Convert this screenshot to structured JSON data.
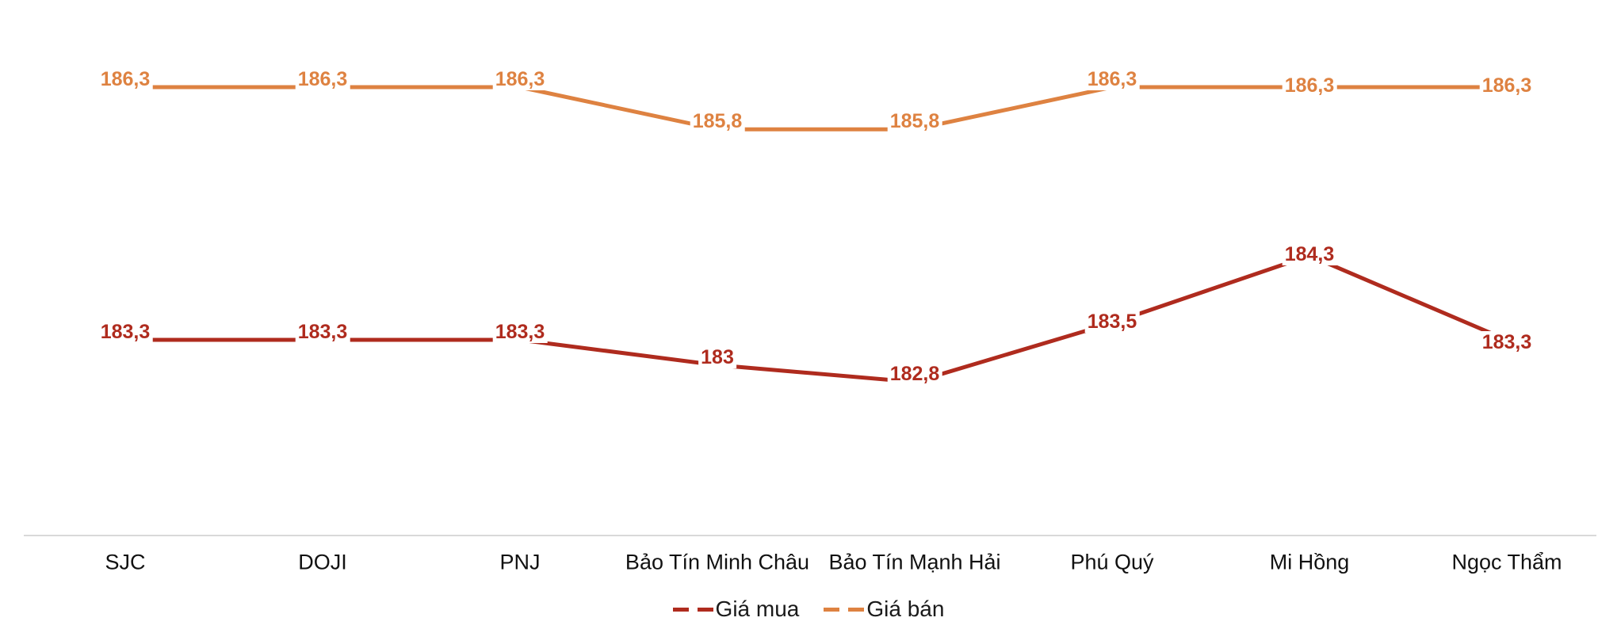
{
  "chart_data": {
    "type": "line",
    "title": "",
    "xlabel": "",
    "ylabel": "",
    "categories": [
      "SJC",
      "DOJI",
      "PNJ",
      "Bảo Tín Minh Châu",
      "Bảo Tín Mạnh Hải",
      "Phú Quý",
      "Mi Hồng",
      "Ngọc Thẩm"
    ],
    "series": [
      {
        "name": "Giá mua",
        "color": "#AF2B1E",
        "values": [
          183.3,
          183.3,
          183.3,
          183.0,
          182.8,
          183.5,
          184.3,
          183.3
        ],
        "labels": [
          "183,3",
          "183,3",
          "183,3",
          "183",
          "182,8",
          "183,5",
          "184,3",
          "183,3"
        ]
      },
      {
        "name": "Giá bán",
        "color": "#DE8241",
        "values": [
          186.3,
          186.3,
          186.3,
          185.8,
          185.8,
          186.3,
          186.3,
          186.3
        ],
        "labels": [
          "186,3",
          "186,3",
          "186,3",
          "185,8",
          "185,8",
          "186,3",
          "186,3",
          "186,3"
        ]
      }
    ],
    "value_format": "decimal-comma",
    "ylim": [
      181,
      187.5
    ],
    "grid": false,
    "legend_position": "bottom",
    "data_labels": true
  },
  "legend": {
    "items": [
      {
        "label": "Giá mua",
        "color": "#AF2B1E"
      },
      {
        "label": "Giá bán",
        "color": "#DE8241"
      }
    ]
  },
  "colors": {
    "background": "#FFFFFF",
    "axis_line": "#D9D9D9",
    "legend_text": "#1A1A1A"
  }
}
